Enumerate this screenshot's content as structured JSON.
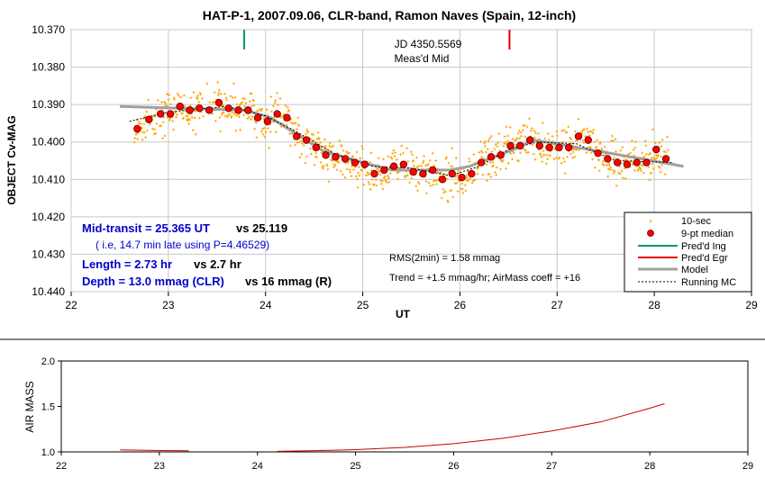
{
  "title": "HAT-P-1, 2007.09.06, CLR-band, Ramon Naves (Spain, 12-inch)",
  "colors": {
    "data": "#FFA500",
    "median": "#FF0000",
    "model": "#A0A0A0",
    "ingress": "#009966",
    "egress": "#E00000",
    "airmass": "#CC0000",
    "blue_text": "#0000CC"
  },
  "chart_data": [
    {
      "type": "scatter",
      "ylabel": "OBJECT Cv-MAG",
      "xlabel": "UT",
      "xlim": [
        22,
        29
      ],
      "ylim": [
        10.44,
        10.37
      ],
      "x_ticks": [
        "22",
        "23",
        "24",
        "25",
        "26",
        "27",
        "28",
        "29"
      ],
      "y_ticks": [
        "10.370",
        "10.380",
        "10.390",
        "10.400",
        "10.410",
        "10.420",
        "10.430",
        "10.440"
      ],
      "grid": true,
      "series": [
        {
          "name": "9-pt median",
          "x": [
            22.68,
            22.8,
            22.92,
            23.02,
            23.12,
            23.22,
            23.32,
            23.42,
            23.52,
            23.62,
            23.72,
            23.82,
            23.92,
            24.02,
            24.12,
            24.22,
            24.32,
            24.42,
            24.52,
            24.62,
            24.72,
            24.82,
            24.92,
            25.02,
            25.12,
            25.22,
            25.32,
            25.42,
            25.52,
            25.62,
            25.72,
            25.82,
            25.92,
            26.02,
            26.12,
            26.22,
            26.32,
            26.42,
            26.52,
            26.62,
            26.72,
            26.82,
            26.92,
            27.02,
            27.12,
            27.22,
            27.32,
            27.42,
            27.52,
            27.62,
            27.72,
            27.82,
            27.92,
            28.02,
            28.12
          ],
          "y": [
            10.3965,
            10.394,
            10.3925,
            10.3925,
            10.3905,
            10.3915,
            10.391,
            10.3915,
            10.3895,
            10.391,
            10.3915,
            10.3915,
            10.3935,
            10.3945,
            10.3925,
            10.3935,
            10.3985,
            10.3995,
            10.4015,
            10.4035,
            10.404,
            10.4045,
            10.4055,
            10.406,
            10.4085,
            10.4075,
            10.4065,
            10.406,
            10.408,
            10.4085,
            10.4075,
            10.41,
            10.4085,
            10.4095,
            10.4085,
            10.4055,
            10.404,
            10.4035,
            10.401,
            10.401,
            10.3995,
            10.401,
            10.4015,
            10.4015,
            10.4015,
            10.3985,
            10.3995,
            10.403,
            10.4045,
            10.4055,
            10.406,
            10.4055,
            10.4055,
            10.402,
            10.4045
          ]
        },
        {
          "name": "Model",
          "x": [
            22.5,
            23.8,
            24.05,
            24.6,
            25.0,
            25.3,
            25.9,
            26.1,
            26.6,
            26.75,
            27.0,
            28.3
          ],
          "y": [
            10.3905,
            10.3915,
            10.3935,
            10.4025,
            10.4055,
            10.4075,
            10.4075,
            10.4065,
            10.4015,
            10.3995,
            10.4005,
            10.4065
          ]
        },
        {
          "name": "Running MC",
          "x": [
            22.6,
            23.0,
            23.6,
            24.0,
            24.3,
            24.7,
            25.1,
            25.5,
            25.9,
            26.2,
            26.5,
            26.8,
            27.2,
            27.6,
            28.2
          ],
          "y": [
            10.3945,
            10.392,
            10.3905,
            10.393,
            10.397,
            10.403,
            10.4065,
            10.407,
            10.409,
            10.4065,
            10.402,
            10.4,
            10.4005,
            10.405,
            10.4055
          ]
        }
      ],
      "vertical_lines": [
        {
          "name": "Pred'd Ing",
          "x": 23.78
        },
        {
          "name": "Pred'd Egr",
          "x": 26.51
        }
      ],
      "legend_position": "bottom-right",
      "legend": [
        "10-sec",
        "9-pt median",
        "Pred'd Ing",
        "Pred'd Egr",
        "Model",
        "Running MC"
      ],
      "annotations": {
        "jd": "JD 4350.5569",
        "meas_mid": "Meas'd Mid",
        "rms": "RMS(2min) = 1.58 mmag",
        "trend": "Trend = +1.5 mmag/hr; AirMass coeff = +16",
        "mid_transit": "Mid-transit = 25.365 UT",
        "mid_transit_vs": "vs 25.119",
        "late_note": "( i.e, 14.7 min late using P=4.46529)",
        "length": "Length = 2.73 hr",
        "length_vs": "vs 2.7 hr",
        "depth": "Depth = 13.0 mmag (CLR)",
        "depth_vs": "vs 16 mmag (R)"
      }
    },
    {
      "type": "line",
      "ylabel": "AIR MASS",
      "xlabel": "",
      "xlim": [
        22,
        29
      ],
      "ylim": [
        1.0,
        2.0
      ],
      "x_ticks": [
        "22",
        "23",
        "24",
        "25",
        "26",
        "27",
        "28",
        "29"
      ],
      "y_ticks": [
        "1.0",
        "1.5",
        "2.0"
      ],
      "series": [
        {
          "name": "Air mass",
          "x": [
            22.6,
            23.0,
            23.3,
            24.2,
            24.6,
            25.0,
            25.5,
            26.0,
            26.5,
            27.0,
            27.5,
            28.0,
            28.15
          ],
          "y": [
            1.022,
            1.015,
            1.012,
            1.006,
            1.013,
            1.025,
            1.05,
            1.09,
            1.15,
            1.23,
            1.33,
            1.48,
            1.53
          ]
        }
      ]
    }
  ]
}
